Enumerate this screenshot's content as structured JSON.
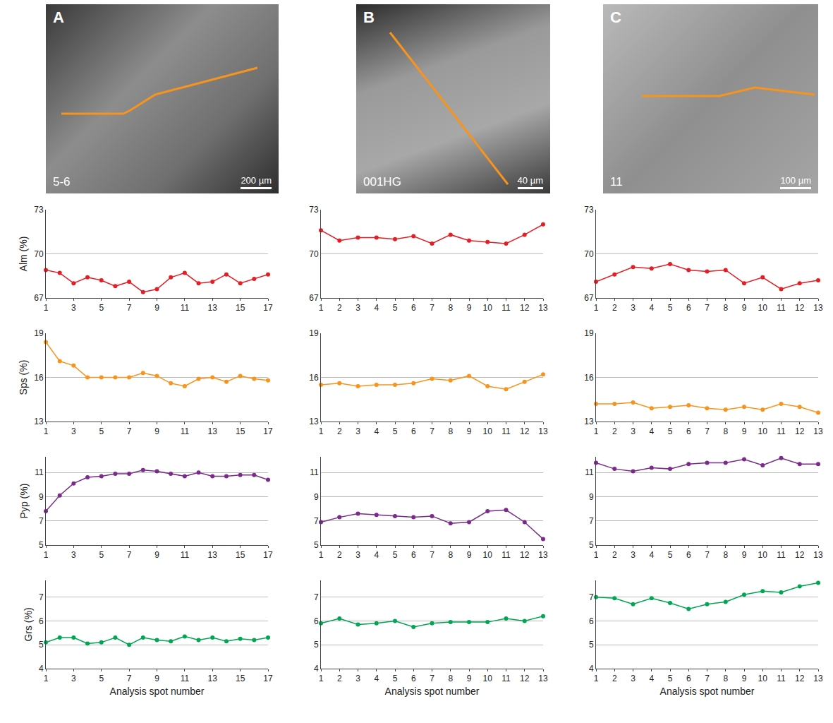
{
  "panels": [
    {
      "label": "A",
      "sample": "5-6",
      "scale_bar": "200 µm"
    },
    {
      "label": "B",
      "sample": "001HG",
      "scale_bar": "40 µm"
    },
    {
      "label": "C",
      "sample": "11",
      "scale_bar": "100 µm"
    }
  ],
  "chart_data": [
    {
      "type": "line",
      "y_label": "Alm (%)",
      "color": "#e31e24",
      "marker": "circle",
      "grid": true,
      "x": [
        1,
        2,
        3,
        4,
        5,
        6,
        7,
        8,
        9,
        10,
        11,
        12,
        13,
        14,
        15,
        16,
        17
      ],
      "values": [
        68.9,
        68.7,
        68.0,
        68.4,
        68.2,
        67.8,
        68.1,
        67.4,
        67.6,
        68.4,
        68.7,
        68.0,
        68.1,
        68.6,
        68.0,
        68.3,
        68.6
      ],
      "xlim": [
        1,
        17
      ],
      "xticks": [
        1,
        3,
        5,
        7,
        9,
        11,
        13,
        15,
        17
      ],
      "ylim": [
        67,
        73
      ],
      "yticks": [
        67,
        70,
        73
      ]
    },
    {
      "type": "line",
      "color": "#e31e24",
      "marker": "circle",
      "grid": true,
      "x": [
        1,
        2,
        3,
        4,
        5,
        6,
        7,
        8,
        9,
        10,
        11,
        12,
        13
      ],
      "values": [
        71.6,
        70.9,
        71.1,
        71.1,
        71.0,
        71.2,
        70.7,
        71.3,
        70.9,
        70.8,
        70.7,
        71.3,
        72.0
      ],
      "xlim": [
        1,
        13
      ],
      "xticks": [
        1,
        2,
        3,
        4,
        5,
        6,
        7,
        8,
        9,
        10,
        11,
        12,
        13
      ],
      "ylim": [
        67,
        73
      ],
      "yticks": [
        67,
        70,
        73
      ]
    },
    {
      "type": "line",
      "color": "#e31e24",
      "marker": "circle",
      "grid": true,
      "x": [
        1,
        2,
        3,
        4,
        5,
        6,
        7,
        8,
        9,
        10,
        11,
        12,
        13
      ],
      "values": [
        68.1,
        68.6,
        69.1,
        69.0,
        69.3,
        68.9,
        68.8,
        68.9,
        68.0,
        68.4,
        67.6,
        68.0,
        68.2
      ],
      "xlim": [
        1,
        13
      ],
      "xticks": [
        1,
        2,
        3,
        4,
        5,
        6,
        7,
        8,
        9,
        10,
        11,
        12,
        13
      ],
      "ylim": [
        67,
        73
      ],
      "yticks": [
        67,
        70,
        73
      ]
    },
    {
      "type": "line",
      "y_label": "Sps (%)",
      "color": "#f7941d",
      "marker": "circle",
      "grid": true,
      "x": [
        1,
        2,
        3,
        4,
        5,
        6,
        7,
        8,
        9,
        10,
        11,
        12,
        13,
        14,
        15,
        16,
        17
      ],
      "values": [
        18.4,
        17.1,
        16.8,
        16.0,
        16.0,
        16.0,
        16.0,
        16.3,
        16.1,
        15.6,
        15.4,
        15.9,
        16.0,
        15.7,
        16.1,
        15.9,
        15.8
      ],
      "xlim": [
        1,
        17
      ],
      "xticks": [
        1,
        3,
        5,
        7,
        9,
        11,
        13,
        15,
        17
      ],
      "ylim": [
        13,
        19
      ],
      "yticks": [
        13,
        16,
        19
      ]
    },
    {
      "type": "line",
      "color": "#f7941d",
      "marker": "circle",
      "grid": true,
      "x": [
        1,
        2,
        3,
        4,
        5,
        6,
        7,
        8,
        9,
        10,
        11,
        12,
        13
      ],
      "values": [
        15.5,
        15.6,
        15.4,
        15.5,
        15.5,
        15.6,
        15.9,
        15.8,
        16.1,
        15.4,
        15.2,
        15.7,
        16.2
      ],
      "xlim": [
        1,
        13
      ],
      "xticks": [
        1,
        2,
        3,
        4,
        5,
        6,
        7,
        8,
        9,
        10,
        11,
        12,
        13
      ],
      "ylim": [
        13,
        19
      ],
      "yticks": [
        13,
        16,
        19
      ]
    },
    {
      "type": "line",
      "color": "#f7941d",
      "marker": "circle",
      "grid": true,
      "x": [
        1,
        2,
        3,
        4,
        5,
        6,
        7,
        8,
        9,
        10,
        11,
        12,
        13
      ],
      "values": [
        14.2,
        14.2,
        14.3,
        13.9,
        14.0,
        14.1,
        13.9,
        13.8,
        14.0,
        13.8,
        14.2,
        14.0,
        13.6
      ],
      "xlim": [
        1,
        13
      ],
      "xticks": [
        1,
        2,
        3,
        4,
        5,
        6,
        7,
        8,
        9,
        10,
        11,
        12,
        13
      ],
      "ylim": [
        13,
        19
      ],
      "yticks": [
        13,
        16,
        19
      ]
    },
    {
      "type": "line",
      "y_label": "Pyp (%)",
      "color": "#7b2a8b",
      "marker": "circle",
      "grid": true,
      "x": [
        1,
        2,
        3,
        4,
        5,
        6,
        7,
        8,
        9,
        10,
        11,
        12,
        13,
        14,
        15,
        16,
        17
      ],
      "values": [
        7.8,
        9.1,
        10.1,
        10.6,
        10.7,
        10.9,
        10.9,
        11.2,
        11.1,
        10.9,
        10.7,
        11.0,
        10.7,
        10.7,
        10.8,
        10.8,
        10.4
      ],
      "xlim": [
        1,
        17
      ],
      "xticks": [
        1,
        3,
        5,
        7,
        9,
        11,
        13,
        15,
        17
      ],
      "ylim": [
        5,
        12.3
      ],
      "yticks": [
        5,
        7,
        9,
        11
      ]
    },
    {
      "type": "line",
      "color": "#7b2a8b",
      "marker": "circle",
      "grid": true,
      "x": [
        1,
        2,
        3,
        4,
        5,
        6,
        7,
        8,
        9,
        10,
        11,
        12,
        13
      ],
      "values": [
        6.9,
        7.3,
        7.6,
        7.5,
        7.4,
        7.3,
        7.4,
        6.8,
        6.9,
        7.8,
        7.9,
        6.9,
        5.5
      ],
      "xlim": [
        1,
        13
      ],
      "xticks": [
        1,
        2,
        3,
        4,
        5,
        6,
        7,
        8,
        9,
        10,
        11,
        12,
        13
      ],
      "ylim": [
        5,
        12.3
      ],
      "yticks": [
        5,
        7,
        9,
        11
      ]
    },
    {
      "type": "line",
      "color": "#7b2a8b",
      "marker": "circle",
      "grid": true,
      "x": [
        1,
        2,
        3,
        4,
        5,
        6,
        7,
        8,
        9,
        10,
        11,
        12,
        13
      ],
      "values": [
        11.8,
        11.3,
        11.1,
        11.4,
        11.3,
        11.7,
        11.8,
        11.8,
        12.1,
        11.6,
        12.2,
        11.7,
        11.7
      ],
      "xlim": [
        1,
        13
      ],
      "xticks": [
        1,
        2,
        3,
        4,
        5,
        6,
        7,
        8,
        9,
        10,
        11,
        12,
        13
      ],
      "ylim": [
        5,
        12.3
      ],
      "yticks": [
        5,
        7,
        9,
        11
      ]
    },
    {
      "type": "line",
      "y_label": "Grs (%)",
      "x_label": "Analysis spot number",
      "color": "#00a651",
      "marker": "circle",
      "grid": true,
      "x": [
        1,
        2,
        3,
        4,
        5,
        6,
        7,
        8,
        9,
        10,
        11,
        12,
        13,
        14,
        15,
        16,
        17
      ],
      "values": [
        5.1,
        5.3,
        5.3,
        5.05,
        5.1,
        5.3,
        5.0,
        5.3,
        5.2,
        5.15,
        5.35,
        5.2,
        5.3,
        5.15,
        5.25,
        5.2,
        5.3
      ],
      "xlim": [
        1,
        17
      ],
      "xticks": [
        1,
        3,
        5,
        7,
        9,
        11,
        13,
        15,
        17
      ],
      "ylim": [
        4,
        7.7
      ],
      "yticks": [
        4,
        5,
        6,
        7
      ]
    },
    {
      "type": "line",
      "x_label": "Analysis spot number",
      "color": "#00a651",
      "marker": "circle",
      "grid": true,
      "x": [
        1,
        2,
        3,
        4,
        5,
        6,
        7,
        8,
        9,
        10,
        11,
        12,
        13
      ],
      "values": [
        5.9,
        6.1,
        5.85,
        5.9,
        6.0,
        5.75,
        5.9,
        5.95,
        5.95,
        5.95,
        6.1,
        6.0,
        6.2
      ],
      "xlim": [
        1,
        13
      ],
      "xticks": [
        1,
        2,
        3,
        4,
        5,
        6,
        7,
        8,
        9,
        10,
        11,
        12,
        13
      ],
      "ylim": [
        4,
        7.7
      ],
      "yticks": [
        4,
        5,
        6,
        7
      ]
    },
    {
      "type": "line",
      "x_label": "Analysis spot number",
      "color": "#00a651",
      "marker": "circle",
      "grid": true,
      "x": [
        1,
        2,
        3,
        4,
        5,
        6,
        7,
        8,
        9,
        10,
        11,
        12,
        13
      ],
      "values": [
        7.0,
        6.95,
        6.7,
        6.95,
        6.75,
        6.5,
        6.7,
        6.8,
        7.1,
        7.25,
        7.2,
        7.45,
        7.6
      ],
      "xlim": [
        1,
        13
      ],
      "xticks": [
        1,
        2,
        3,
        4,
        5,
        6,
        7,
        8,
        9,
        10,
        11,
        12,
        13
      ],
      "ylim": [
        4,
        7.7
      ],
      "yticks": [
        4,
        5,
        6,
        7
      ]
    }
  ]
}
